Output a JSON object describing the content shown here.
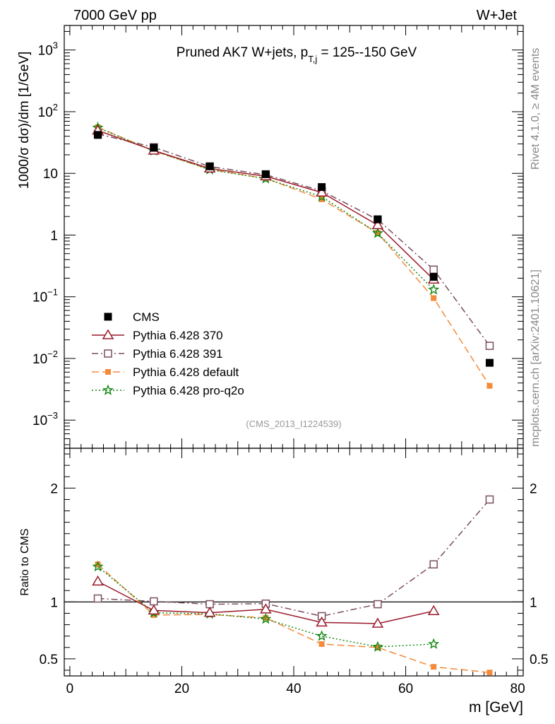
{
  "header": {
    "left": "7000 GeV pp",
    "right": "W+Jet"
  },
  "side_labels": {
    "rivet_prefix": "Rivet 4.1.0, ",
    "rivet_suffix": " 4M events",
    "rivet_symbol": "≥",
    "source": "mcplots.cern.ch [arXiv:2401.10621]"
  },
  "colors": {
    "cms": "#000000",
    "p370": "#9a1a2b",
    "p391": "#7a4e5e",
    "pdefault": "#f58a3a",
    "pq2o": "#128712"
  },
  "chart_data": [
    {
      "type": "scatter",
      "panel": "main",
      "title_prefix": "Pruned AK7 W+jets, p",
      "title_sub": "T,j",
      "title_suffix": " = 125--150 GeV",
      "ylabel": "1000/σ  dσ)/dm [1/GeV]",
      "yscale": "log",
      "ylim": [
        0.00035,
        2500
      ],
      "xlim": [
        -1,
        81
      ],
      "y_tick_labels": [
        {
          "value": 1000,
          "base": "10",
          "exp": "3"
        },
        {
          "value": 100,
          "base": "10",
          "exp": "2"
        },
        {
          "value": 10,
          "base": "10",
          "exp": ""
        },
        {
          "value": 1,
          "base": "1",
          "exp": ""
        },
        {
          "value": 0.1,
          "base": "10",
          "exp": "−1"
        },
        {
          "value": 0.01,
          "base": "10",
          "exp": "−2"
        },
        {
          "value": 0.001,
          "base": "10",
          "exp": "−3"
        }
      ],
      "annotation": "(CMS_2013_I1224539)",
      "legend_position": "bottom-left",
      "series": [
        {
          "key": "cms",
          "name": "CMS",
          "marker": "filled-square",
          "line": "none",
          "x": [
            5,
            15,
            25,
            35,
            45,
            55,
            65,
            75
          ],
          "y": [
            42,
            26,
            13,
            9.7,
            6.0,
            1.8,
            0.21,
            0.0085
          ]
        },
        {
          "key": "p370",
          "name": "Pythia 6.428 370",
          "marker": "open-triangle",
          "line": "solid",
          "x": [
            5,
            15,
            25,
            35,
            45,
            55,
            65
          ],
          "y": [
            49.5,
            23.5,
            12.0,
            9.0,
            4.9,
            1.45,
            0.19
          ]
        },
        {
          "key": "p391",
          "name": "Pythia 6.428 391",
          "marker": "open-square",
          "line": "dashdot",
          "x": [
            5,
            15,
            25,
            35,
            45,
            55,
            65,
            75
          ],
          "y": [
            43.5,
            26.5,
            12.9,
            9.5,
            5.2,
            1.78,
            0.275,
            0.016
          ]
        },
        {
          "key": "pdefault",
          "name": "Pythia 6.428 default",
          "marker": "filled-small-square",
          "line": "longdash",
          "x": [
            5,
            15,
            25,
            35,
            45,
            55,
            65,
            75
          ],
          "y": [
            56,
            23,
            11.6,
            8.3,
            3.8,
            1.08,
            0.095,
            0.0036
          ]
        },
        {
          "key": "pq2o",
          "name": "Pythia 6.428 pro-q2o",
          "marker": "star",
          "line": "dotted",
          "x": [
            5,
            15,
            25,
            35,
            45,
            55,
            65
          ],
          "y": [
            55,
            23.2,
            11.5,
            8.2,
            4.2,
            1.07,
            0.13
          ]
        }
      ]
    },
    {
      "type": "scatter",
      "panel": "ratio",
      "ylabel": "Ratio to CMS",
      "xlabel": "m [GeV]",
      "ylim": [
        0.35,
        2.35
      ],
      "xlim": [
        -1,
        81
      ],
      "x_ticks": [
        0,
        20,
        40,
        60,
        80
      ],
      "x_tick_labels": [
        "0",
        "20",
        "40",
        "60",
        "80"
      ],
      "y_ticks": [
        0.5,
        1,
        2
      ],
      "y_tick_labels": [
        "0.5",
        "1",
        "2"
      ],
      "reference_line": 1,
      "series": [
        {
          "key": "p370",
          "x": [
            5,
            15,
            25,
            35,
            45,
            55,
            65
          ],
          "y": [
            1.18,
            0.925,
            0.905,
            0.935,
            0.82,
            0.81,
            0.92
          ]
        },
        {
          "key": "p391",
          "x": [
            5,
            15,
            25,
            35,
            45,
            55,
            65,
            75
          ],
          "y": [
            1.03,
            1.005,
            0.98,
            0.985,
            0.875,
            0.98,
            1.33,
            1.9
          ]
        },
        {
          "key": "pdefault",
          "x": [
            5,
            15,
            25,
            35,
            45,
            55,
            65,
            75
          ],
          "y": [
            1.33,
            0.885,
            0.89,
            0.86,
            0.63,
            0.6,
            0.43,
            0.38
          ]
        },
        {
          "key": "pq2o",
          "x": [
            5,
            15,
            25,
            35,
            45,
            55,
            65
          ],
          "y": [
            1.31,
            0.905,
            0.895,
            0.85,
            0.7,
            0.605,
            0.63
          ]
        }
      ]
    }
  ]
}
